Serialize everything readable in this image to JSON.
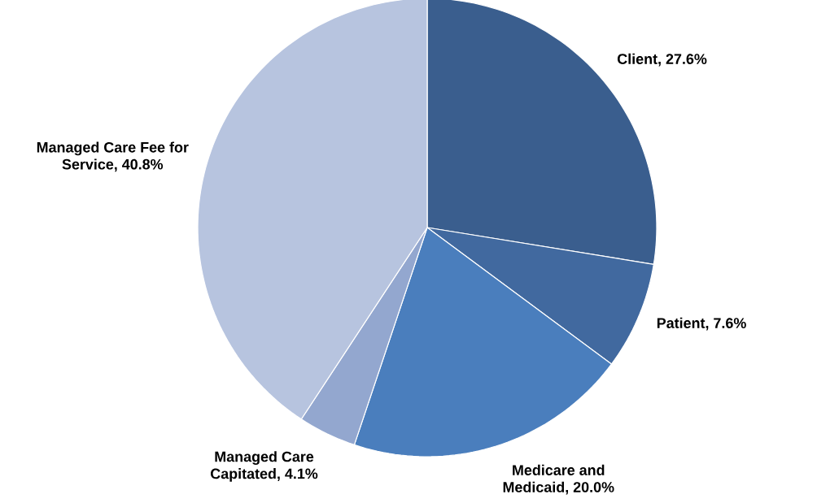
{
  "chart_data": {
    "type": "pie",
    "categories": [
      "Client, 27.6%",
      "Patient, 7.6%",
      "Medicare and Medicaid, 20.0%",
      "Managed Care Capitated, 4.1%",
      "Managed Care Fee for Service, 40.8%"
    ],
    "values": [
      27.6,
      7.6,
      20.0,
      4.1,
      40.8
    ],
    "colors": [
      "#3a5e8e",
      "#41699f",
      "#4a7ebd",
      "#93a7cf",
      "#b7c4df"
    ]
  }
}
